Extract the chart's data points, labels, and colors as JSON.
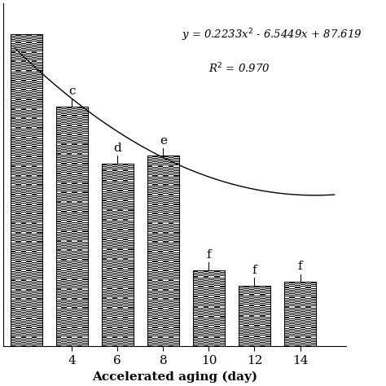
{
  "categories": [
    4,
    6,
    8,
    10,
    12,
    14
  ],
  "values": [
    63,
    48,
    50,
    20,
    16,
    17
  ],
  "bar0_x": 2,
  "bar0_height": 82,
  "letters": [
    "c",
    "d",
    "e",
    "f",
    "f",
    "f"
  ],
  "xlabel": "Accelerated aging (day)",
  "ylim": [
    0,
    90
  ],
  "xlim": [
    1.0,
    16.0
  ],
  "poly_a": 0.2233,
  "poly_b": -6.5449,
  "poly_c": 87.619,
  "bar_width": 1.4,
  "background": "#ffffff",
  "equation_line1": "y = 0.2233x$^2$ - 6.5449x + 87.619",
  "equation_line2": "R$^2$ = 0.970"
}
